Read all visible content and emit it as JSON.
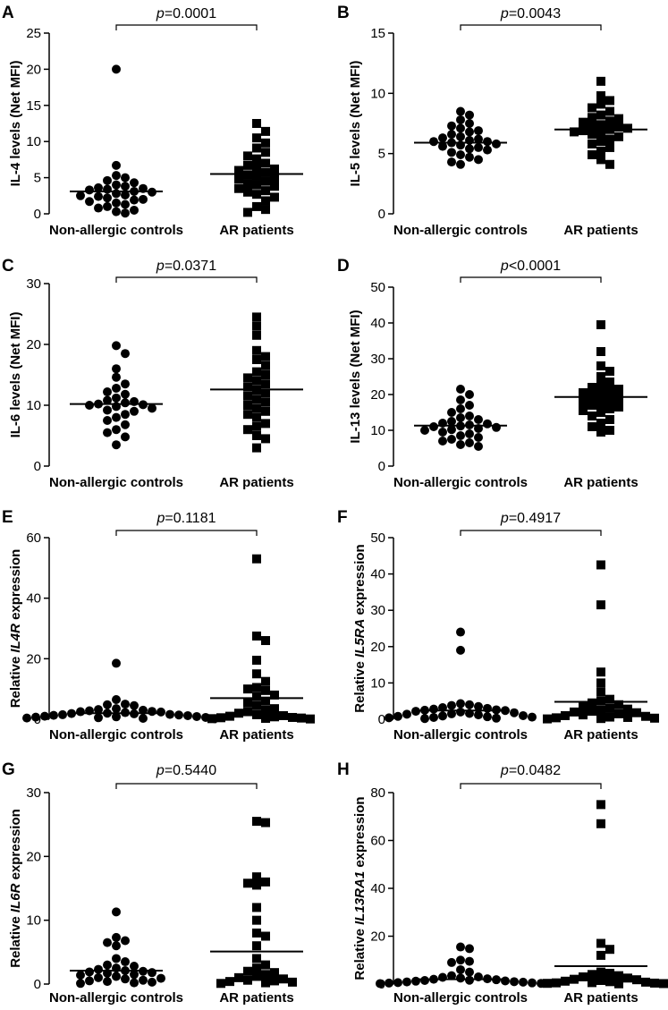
{
  "chart_data": [
    {
      "panel": "A",
      "type": "scatter",
      "ylabel": "IL-4 levels (Net MFI)",
      "categories": [
        "Non-allergic controls",
        "AR patients"
      ],
      "pvalue": "0.0001",
      "ylim": [
        0,
        25
      ],
      "yticks": [
        0,
        5,
        10,
        15,
        20,
        25
      ],
      "series": [
        {
          "name": "Non-allergic controls",
          "marker": "circle",
          "mean": 3.1,
          "values": [
            20,
            6.7,
            5.3,
            5.0,
            4.6,
            4.3,
            4.0,
            3.8,
            3.6,
            3.5,
            3.4,
            3.3,
            3.1,
            3.0,
            2.8,
            2.6,
            2.5,
            2.4,
            2.2,
            2.0,
            1.9,
            1.7,
            1.5,
            1.3,
            1.0,
            0.8,
            0.5,
            0.3,
            0.1
          ]
        },
        {
          "name": "AR patients",
          "marker": "square",
          "mean": 5.5,
          "values": [
            12.5,
            11.4,
            10.5,
            9.8,
            9.1,
            8.5,
            8.0,
            7.6,
            7.0,
            6.7,
            6.4,
            6.2,
            6.0,
            5.7,
            5.4,
            5.2,
            5.0,
            4.8,
            4.5,
            4.2,
            4.0,
            3.8,
            3.5,
            3.2,
            3.0,
            2.7,
            2.3,
            1.8,
            1.0,
            0.6,
            0.2
          ]
        }
      ]
    },
    {
      "panel": "B",
      "type": "scatter",
      "ylabel": "IL-5 levels (Net MFI)",
      "categories": [
        "Non-allergic controls",
        "AR patients"
      ],
      "pvalue": "0.0043",
      "ylim": [
        0,
        15
      ],
      "yticks": [
        0,
        5,
        10,
        15
      ],
      "series": [
        {
          "name": "Non-allergic controls",
          "marker": "circle",
          "mean": 5.9,
          "values": [
            8.5,
            8.2,
            7.8,
            7.5,
            7.3,
            7.1,
            6.9,
            6.8,
            6.6,
            6.4,
            6.3,
            6.2,
            6.1,
            6.0,
            6.0,
            5.9,
            5.8,
            5.7,
            5.6,
            5.5,
            5.4,
            5.3,
            5.1,
            4.9,
            4.7,
            4.5,
            4.3,
            4.1
          ]
        },
        {
          "name": "AR patients",
          "marker": "square",
          "mean": 7.0,
          "values": [
            11.0,
            9.8,
            9.4,
            9.1,
            8.8,
            8.5,
            8.2,
            8.0,
            7.9,
            7.7,
            7.6,
            7.4,
            7.3,
            7.2,
            7.1,
            7.0,
            6.9,
            6.8,
            6.7,
            6.6,
            6.4,
            6.2,
            6.0,
            5.8,
            5.5,
            5.2,
            4.9,
            4.5,
            4.1
          ]
        }
      ]
    },
    {
      "panel": "C",
      "type": "scatter",
      "ylabel": "IL-6 levels (Net MFI)",
      "categories": [
        "Non-allergic controls",
        "AR patients"
      ],
      "pvalue": "0.0371",
      "ylim": [
        0,
        30
      ],
      "yticks": [
        0,
        10,
        20,
        30
      ],
      "series": [
        {
          "name": "Non-allergic controls",
          "marker": "circle",
          "mean": 10.2,
          "values": [
            19.8,
            18.5,
            16.0,
            14.6,
            13.5,
            12.8,
            11.8,
            11.2,
            10.8,
            10.6,
            10.4,
            10.2,
            10.1,
            10.0,
            9.8,
            9.5,
            9.2,
            8.5,
            8.0,
            7.5,
            6.8,
            6.0,
            5.5,
            4.8,
            3.5,
            12.2,
            9.0
          ]
        },
        {
          "name": "AR patients",
          "marker": "square",
          "mean": 12.6,
          "values": [
            24.5,
            23.0,
            21.5,
            19.0,
            18.0,
            17.5,
            16.5,
            15.5,
            15.0,
            14.5,
            14.0,
            13.5,
            13.0,
            12.5,
            12.0,
            11.5,
            11.0,
            10.5,
            10.0,
            9.5,
            9.0,
            8.5,
            8.0,
            7.0,
            6.5,
            6.0,
            5.0,
            4.5,
            3.0
          ]
        }
      ]
    },
    {
      "panel": "D",
      "type": "scatter",
      "ylabel": "IL-13 levels (Net MFI)",
      "categories": [
        "Non-allergic controls",
        "AR patients"
      ],
      "pvalue": "<0.0001",
      "ylim": [
        0,
        50
      ],
      "yticks": [
        0,
        10,
        20,
        30,
        40,
        50
      ],
      "series": [
        {
          "name": "Non-allergic controls",
          "marker": "circle",
          "mean": 11.3,
          "values": [
            21.5,
            20.0,
            18.5,
            17.0,
            16.0,
            15.0,
            14.0,
            13.5,
            13.0,
            12.5,
            12.0,
            11.8,
            11.5,
            11.2,
            11.0,
            10.8,
            10.5,
            10.2,
            10.0,
            9.5,
            9.0,
            8.5,
            8.0,
            7.5,
            7.0,
            6.5,
            6.0,
            5.5
          ]
        },
        {
          "name": "AR patients",
          "marker": "square",
          "mean": 19.3,
          "values": [
            39.5,
            32.0,
            28.0,
            26.5,
            25.0,
            23.5,
            22.5,
            22.0,
            21.5,
            21.0,
            20.5,
            20.0,
            19.5,
            19.0,
            18.5,
            18.0,
            17.5,
            17.0,
            16.5,
            16.0,
            15.5,
            15.0,
            14.0,
            13.0,
            12.0,
            11.0,
            10.0,
            9.5
          ]
        }
      ]
    },
    {
      "panel": "E",
      "type": "scatter",
      "ylabel": "Relative IL4R expression",
      "ylabel_prefix": "Relative ",
      "ylabel_gene": "IL4R",
      "ylabel_suffix": " expression",
      "categories": [
        "Non-allergic controls",
        "AR patients"
      ],
      "pvalue": "0.1181",
      "ylim": [
        0,
        60
      ],
      "yticks": [
        0,
        20,
        40,
        60
      ],
      "series": [
        {
          "name": "Non-allergic controls",
          "marker": "circle",
          "mean": 2.0,
          "values": [
            18.5,
            6.5,
            5.0,
            4.8,
            4.5,
            3.5,
            3.2,
            3.0,
            2.8,
            2.6,
            2.5,
            2.4,
            2.2,
            2.0,
            1.9,
            1.8,
            1.6,
            1.5,
            1.4,
            1.3,
            1.2,
            1.0,
            0.9,
            0.8,
            0.7,
            0.6,
            0.5,
            0.4,
            0.3,
            0.2
          ]
        },
        {
          "name": "AR patients",
          "marker": "square",
          "mean": 7.0,
          "values": [
            53,
            27.5,
            26.0,
            19.5,
            15.0,
            12.5,
            10.5,
            10.0,
            9.5,
            8.0,
            7.5,
            6.0,
            5.5,
            4.5,
            3.5,
            3.0,
            2.5,
            2.0,
            1.5,
            1.2,
            1.0,
            0.8,
            0.6,
            0.5,
            0.4,
            0.3,
            0.2,
            0.1
          ]
        }
      ]
    },
    {
      "panel": "F",
      "type": "scatter",
      "ylabel": "Relative IL5RA expression",
      "ylabel_prefix": "Relative ",
      "ylabel_gene": "IL5RA",
      "ylabel_suffix": " expression",
      "categories": [
        "Non-allergic controls",
        "AR patients"
      ],
      "pvalue": "0.4917",
      "ylim": [
        0,
        50
      ],
      "yticks": [
        0,
        10,
        20,
        30,
        40,
        50
      ],
      "series": [
        {
          "name": "Non-allergic controls",
          "marker": "circle",
          "mean": 2.4,
          "values": [
            24.0,
            19.0,
            4.3,
            4.0,
            3.8,
            3.5,
            3.2,
            3.0,
            2.8,
            2.6,
            2.5,
            2.4,
            2.2,
            2.0,
            1.8,
            1.6,
            1.5,
            1.4,
            1.2,
            1.0,
            0.9,
            0.8,
            0.7,
            0.6,
            0.5,
            0.4,
            0.3,
            0.2
          ]
        },
        {
          "name": "AR patients",
          "marker": "square",
          "mean": 4.8,
          "values": [
            42.5,
            31.5,
            13.0,
            10.0,
            7.5,
            5.5,
            5.0,
            4.5,
            4.0,
            3.5,
            3.0,
            2.8,
            2.5,
            2.2,
            2.0,
            1.8,
            1.5,
            1.2,
            1.0,
            0.8,
            0.6,
            0.5,
            0.4,
            0.3,
            0.2,
            0.1
          ]
        }
      ]
    },
    {
      "panel": "G",
      "type": "scatter",
      "ylabel": "Relative IL6R expression",
      "ylabel_prefix": "Relative ",
      "ylabel_gene": "IL6R",
      "ylabel_suffix": " expression",
      "categories": [
        "Non-allergic controls",
        "AR patients"
      ],
      "pvalue": "0.5440",
      "ylim": [
        0,
        30
      ],
      "yticks": [
        0,
        10,
        20,
        30
      ],
      "series": [
        {
          "name": "Non-allergic controls",
          "marker": "circle",
          "mean": 2.1,
          "values": [
            11.3,
            7.3,
            6.8,
            6.5,
            6.0,
            4.0,
            3.5,
            3.0,
            2.8,
            2.5,
            2.3,
            2.1,
            2.0,
            1.9,
            1.8,
            1.7,
            1.5,
            1.4,
            1.2,
            1.0,
            0.9,
            0.8,
            0.6,
            0.5,
            0.4,
            0.3,
            0.2,
            0.1
          ]
        },
        {
          "name": "AR patients",
          "marker": "square",
          "mean": 5.1,
          "values": [
            25.5,
            25.3,
            16.8,
            16.0,
            15.8,
            15.5,
            12.0,
            10.0,
            8.0,
            7.5,
            6.0,
            4.0,
            3.0,
            2.5,
            2.0,
            1.8,
            1.5,
            1.2,
            1.0,
            0.8,
            0.6,
            0.5,
            0.4,
            0.3,
            0.2,
            0.1
          ]
        }
      ]
    },
    {
      "panel": "H",
      "type": "scatter",
      "ylabel": "Relative IL13RA1 expression",
      "ylabel_prefix": "Relative ",
      "ylabel_gene": "IL13RA1",
      "ylabel_suffix": " expression",
      "categories": [
        "Non-allergic controls",
        "AR patients"
      ],
      "pvalue": "0.0482",
      "ylim": [
        0,
        80
      ],
      "yticks": [
        0,
        20,
        40,
        60,
        80
      ],
      "series": [
        {
          "name": "Non-allergic controls",
          "marker": "circle",
          "mean": 2.0,
          "values": [
            15.5,
            14.8,
            10.0,
            9.5,
            9.0,
            6.0,
            5.0,
            3.5,
            3.0,
            2.8,
            2.5,
            2.2,
            2.0,
            1.8,
            1.6,
            1.5,
            1.3,
            1.2,
            1.0,
            0.9,
            0.8,
            0.6,
            0.5,
            0.4,
            0.3,
            0.2
          ]
        },
        {
          "name": "AR patients",
          "marker": "square",
          "mean": 7.5,
          "values": [
            75,
            67,
            17.0,
            14.5,
            12.0,
            5.0,
            4.5,
            4.0,
            3.5,
            3.0,
            2.5,
            2.0,
            1.8,
            1.5,
            1.2,
            1.0,
            0.8,
            0.6,
            0.5,
            0.4,
            0.3,
            0.2,
            0.1
          ]
        }
      ]
    }
  ]
}
